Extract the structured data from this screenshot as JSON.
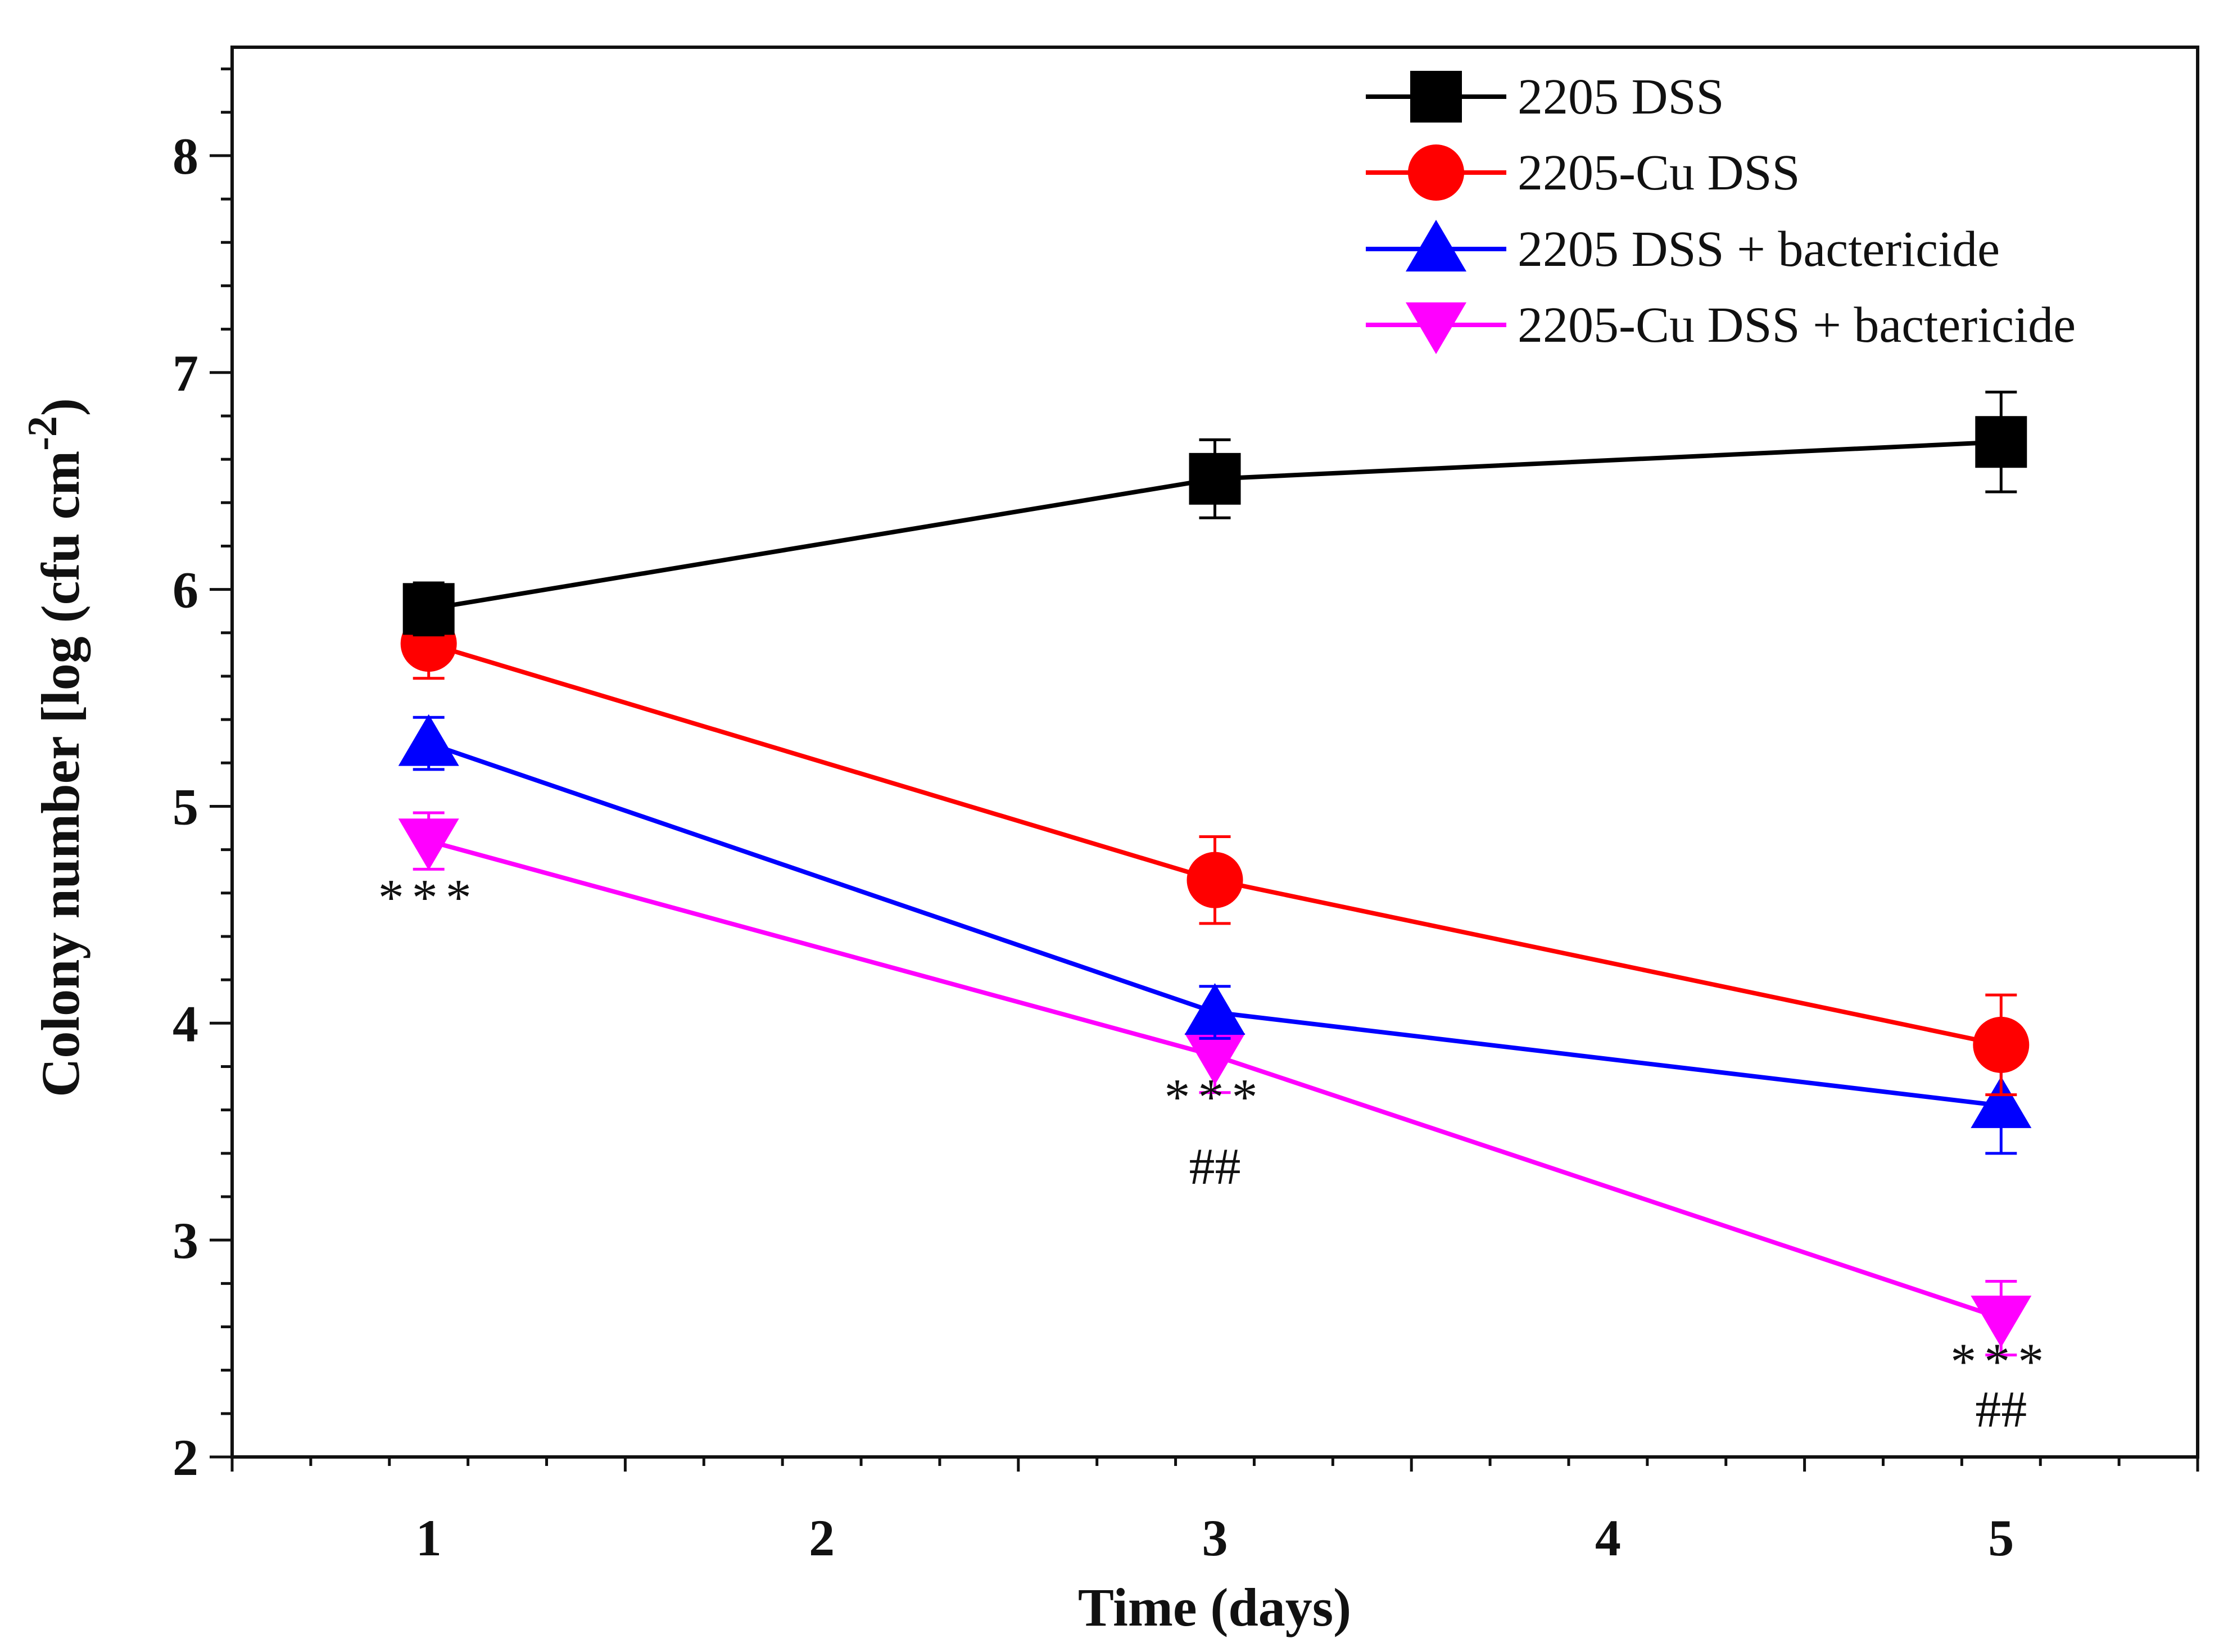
{
  "chart_data": {
    "type": "line",
    "title": "",
    "xlabel": "Time  (days)",
    "ylabel_main": "Colony number [log (cfu cm",
    "ylabel_sup": "-2",
    "ylabel_close": ")",
    "xlim": [
      0.5,
      5.5
    ],
    "ylim": [
      2,
      8.5
    ],
    "x_ticks": [
      1,
      2,
      3,
      4,
      5
    ],
    "x_tick_labels": [
      "1",
      "2",
      "3",
      "4",
      "5"
    ],
    "x_minor_step": 0.2,
    "y_ticks": [
      2,
      3,
      4,
      5,
      6,
      7,
      8
    ],
    "y_tick_labels": [
      "2",
      "3",
      "4",
      "5",
      "6",
      "7",
      "8"
    ],
    "y_minor_step": 0.2,
    "legend_position": "top-right",
    "x": [
      1,
      3,
      5
    ],
    "series": [
      {
        "name": "2205 DSS",
        "color": "#000000",
        "marker": "square",
        "values": [
          5.91,
          6.51,
          6.68
        ],
        "errors": [
          0.12,
          0.18,
          0.23
        ]
      },
      {
        "name": "2205-Cu DSS",
        "color": "#ff0000",
        "marker": "circle",
        "values": [
          5.75,
          4.66,
          3.9
        ],
        "errors": [
          0.16,
          0.2,
          0.23
        ]
      },
      {
        "name": "2205 DSS + bactericide",
        "color": "#0000ff",
        "marker": "triangle-up",
        "values": [
          5.29,
          4.05,
          3.62
        ],
        "errors": [
          0.12,
          0.12,
          0.22
        ]
      },
      {
        "name": "2205-Cu DSS + bactericide",
        "color": "#ff00ff",
        "marker": "triangle-down",
        "values": [
          4.84,
          3.85,
          2.64
        ],
        "errors": [
          0.13,
          0.17,
          0.17
        ]
      }
    ],
    "annotations": [
      {
        "x": 1,
        "y": 4.5,
        "text": "***"
      },
      {
        "x": 3,
        "y": 3.58,
        "text": "***"
      },
      {
        "x": 3,
        "y": 3.26,
        "text": "##"
      },
      {
        "x": 5,
        "y": 2.36,
        "text": "***"
      },
      {
        "x": 5,
        "y": 2.14,
        "text": "##"
      }
    ]
  }
}
